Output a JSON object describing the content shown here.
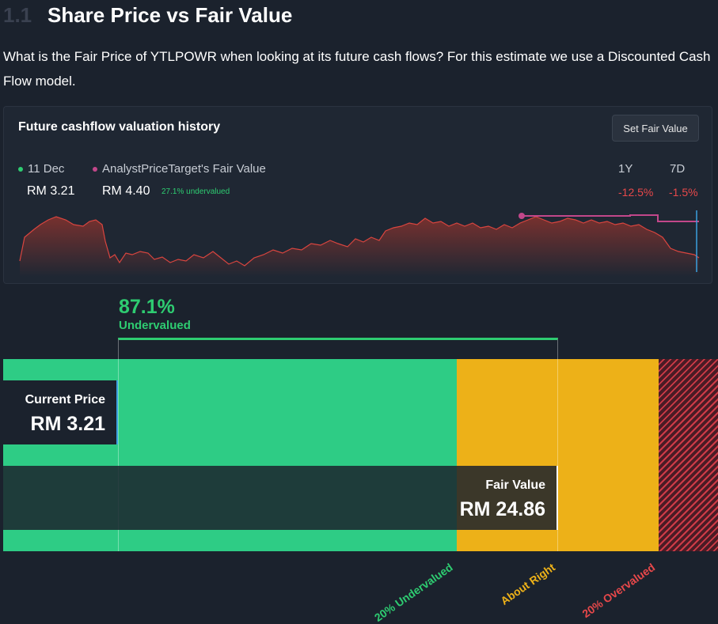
{
  "section": {
    "number": "1.1",
    "title": "Share Price vs Fair Value"
  },
  "intro": "What is the Fair Price of YTLPOWR when looking at its future cash flows? For this estimate we use a Discounted Cash Flow model.",
  "card": {
    "title": "Future cashflow valuation history",
    "button_label": "Set Fair Value",
    "legend": [
      {
        "label": "11 Dec",
        "value": "RM 3.21",
        "color": "#2ecc71"
      },
      {
        "label": "AnalystPriceTarget's Fair Value",
        "value": "RM 4.40",
        "note": "27.1% undervalued",
        "color": "#c2478a"
      }
    ],
    "periods": [
      {
        "label": "1Y",
        "change": "-12.5%"
      },
      {
        "label": "7D",
        "change": "-1.5%"
      }
    ]
  },
  "valuation": {
    "percent": "87.1%",
    "status": "Undervalued",
    "current_price_label": "Current Price",
    "current_price_value": "RM 3.21",
    "fair_value_label": "Fair Value",
    "fair_value_value": "RM 24.86",
    "zones": [
      "20% Undervalued",
      "About Right",
      "20% Overvalued"
    ]
  },
  "colors": {
    "green": "#2ecc85",
    "yellow": "#edb118",
    "red": "#cf3b47",
    "pink": "#c2478a"
  }
}
